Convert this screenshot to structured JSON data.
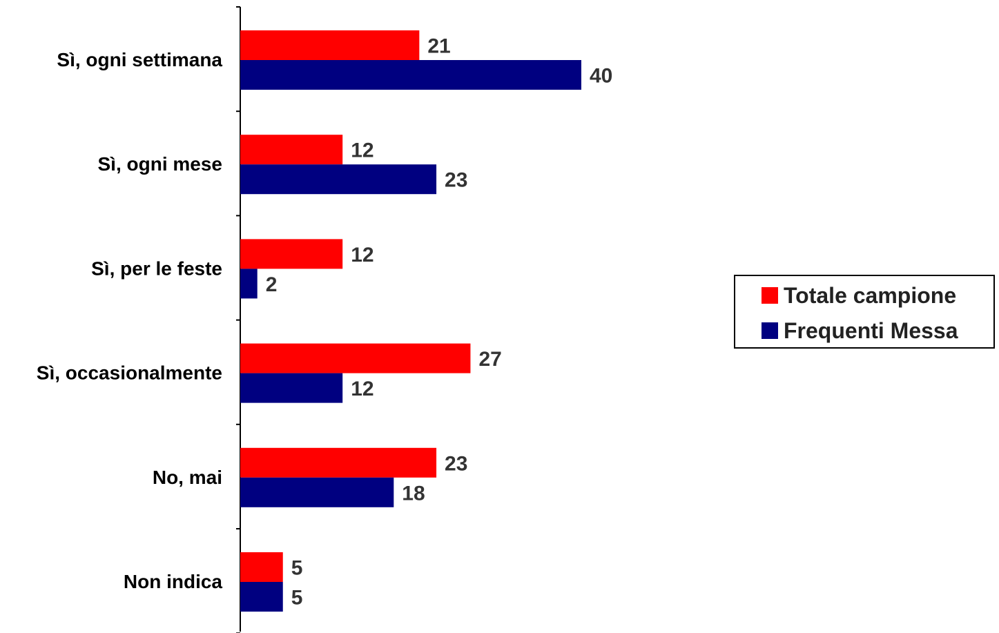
{
  "chart_data": {
    "type": "bar",
    "orientation": "horizontal",
    "categories": [
      "Sì, ogni settimana",
      "Sì, ogni mese",
      "Sì, per le feste",
      "Sì, occasionalmente",
      "No, mai",
      "Non indica"
    ],
    "series": [
      {
        "name": "Totale campione",
        "color": "#ff0000",
        "values": [
          21,
          12,
          12,
          27,
          23,
          5
        ]
      },
      {
        "name": "Frequenti Messa",
        "color": "#000080",
        "values": [
          40,
          23,
          2,
          12,
          18,
          5
        ]
      }
    ],
    "title": "",
    "xlabel": "",
    "ylabel": "",
    "xlim": [
      0,
      80
    ],
    "grid": false,
    "legend_position": "right"
  }
}
